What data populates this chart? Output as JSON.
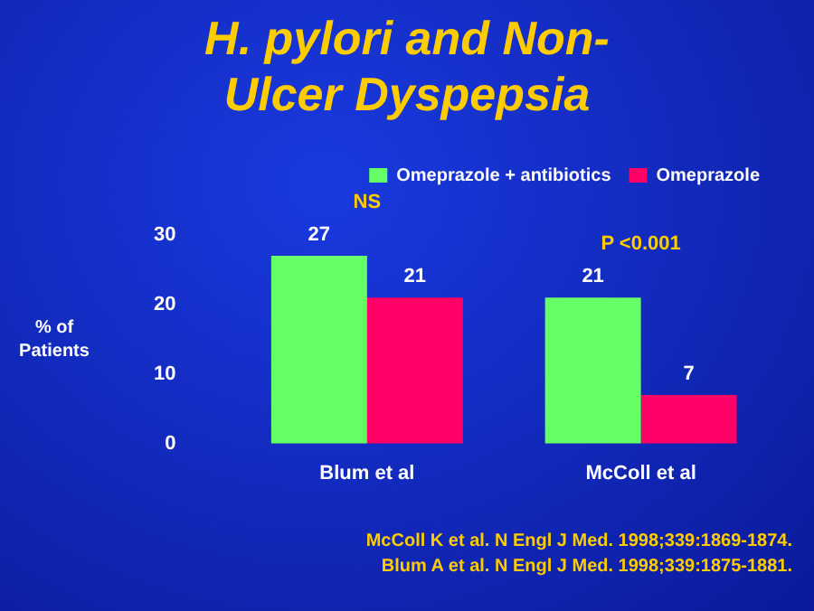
{
  "chart_data": {
    "type": "bar",
    "title": "H. pylori and Non-Ulcer Dyspepsia",
    "ylabel": "% of Patients",
    "categories": [
      "Blum et al",
      "McColl et al"
    ],
    "series": [
      {
        "name": "Omeprazole + antibiotics",
        "color": "#66ff66",
        "values": [
          27,
          21
        ]
      },
      {
        "name": "Omeprazole",
        "color": "#ff0066",
        "values": [
          21,
          7
        ]
      }
    ],
    "ylim": [
      0,
      30
    ],
    "yticks": [
      0,
      10,
      20,
      30
    ],
    "grid": false,
    "legend": "top right",
    "data_labels": true,
    "annotations": [
      {
        "text": "NS",
        "x": "Blum et al",
        "y": 27
      },
      {
        "text": "P <0.001",
        "x": "McColl et al",
        "y": 21
      },
      "McColl K et al. N Engl J Med. 1998;339:1869-1874.",
      "Blum A et al. N Engl J Med. 1998;339:1875-1881."
    ]
  }
}
